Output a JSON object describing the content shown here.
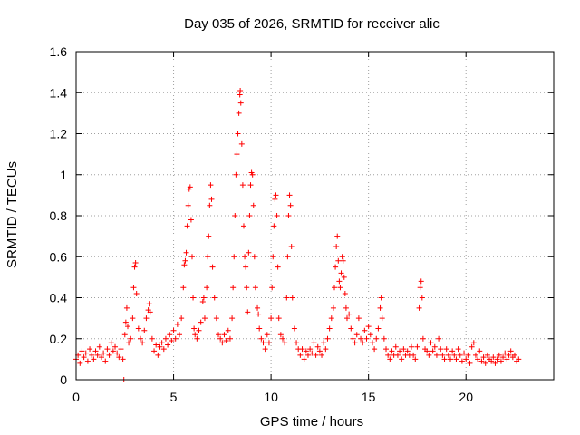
{
  "chart_data": {
    "type": "scatter",
    "title": "Day 035 of 2026, SRMTID for receiver alic",
    "xlabel": "GPS time / hours",
    "ylabel": "SRMTID / TECUs",
    "xlim": [
      0,
      24.5
    ],
    "ylim": [
      0,
      1.6
    ],
    "xticks": [
      0,
      5,
      10,
      15,
      20
    ],
    "xtick_labels": [
      "0",
      "5",
      "10",
      "15",
      "20"
    ],
    "yticks": [
      0,
      0.2,
      0.4,
      0.6,
      0.8,
      1.0,
      1.2,
      1.4,
      1.6
    ],
    "ytick_labels": [
      "0",
      "0.2",
      "0.4",
      "0.6",
      "0.8",
      "1",
      "1.2",
      "1.4",
      "1.6"
    ],
    "grid": true,
    "marker": "plus",
    "color": "#ff0000",
    "series": [
      {
        "name": "SRMTID",
        "points": [
          [
            0.0,
            0.1
          ],
          [
            0.1,
            0.12
          ],
          [
            0.2,
            0.08
          ],
          [
            0.3,
            0.14
          ],
          [
            0.4,
            0.11
          ],
          [
            0.5,
            0.13
          ],
          [
            0.6,
            0.09
          ],
          [
            0.7,
            0.15
          ],
          [
            0.8,
            0.12
          ],
          [
            0.9,
            0.1
          ],
          [
            1.0,
            0.14
          ],
          [
            1.1,
            0.12
          ],
          [
            1.2,
            0.16
          ],
          [
            1.3,
            0.11
          ],
          [
            1.4,
            0.13
          ],
          [
            1.5,
            0.09
          ],
          [
            1.6,
            0.15
          ],
          [
            1.7,
            0.12
          ],
          [
            1.8,
            0.18
          ],
          [
            1.9,
            0.14
          ],
          [
            2.0,
            0.16
          ],
          [
            2.1,
            0.13
          ],
          [
            2.2,
            0.11
          ],
          [
            2.3,
            0.15
          ],
          [
            2.4,
            0.1
          ],
          [
            2.45,
            0.0
          ],
          [
            2.5,
            0.22
          ],
          [
            2.55,
            0.28
          ],
          [
            2.6,
            0.35
          ],
          [
            2.65,
            0.26
          ],
          [
            2.7,
            0.18
          ],
          [
            2.8,
            0.2
          ],
          [
            2.9,
            0.3
          ],
          [
            2.95,
            0.45
          ],
          [
            3.0,
            0.55
          ],
          [
            3.05,
            0.57
          ],
          [
            3.1,
            0.42
          ],
          [
            3.2,
            0.25
          ],
          [
            3.3,
            0.2
          ],
          [
            3.4,
            0.18
          ],
          [
            3.5,
            0.24
          ],
          [
            3.6,
            0.3
          ],
          [
            3.7,
            0.34
          ],
          [
            3.75,
            0.37
          ],
          [
            3.8,
            0.33
          ],
          [
            3.9,
            0.2
          ],
          [
            4.0,
            0.14
          ],
          [
            4.1,
            0.17
          ],
          [
            4.2,
            0.12
          ],
          [
            4.3,
            0.16
          ],
          [
            4.4,
            0.18
          ],
          [
            4.5,
            0.15
          ],
          [
            4.6,
            0.2
          ],
          [
            4.7,
            0.17
          ],
          [
            4.8,
            0.22
          ],
          [
            4.9,
            0.19
          ],
          [
            5.0,
            0.24
          ],
          [
            5.1,
            0.2
          ],
          [
            5.2,
            0.27
          ],
          [
            5.3,
            0.22
          ],
          [
            5.4,
            0.3
          ],
          [
            5.5,
            0.45
          ],
          [
            5.55,
            0.56
          ],
          [
            5.6,
            0.58
          ],
          [
            5.65,
            0.62
          ],
          [
            5.7,
            0.75
          ],
          [
            5.75,
            0.85
          ],
          [
            5.8,
            0.93
          ],
          [
            5.85,
            0.94
          ],
          [
            5.9,
            0.78
          ],
          [
            5.95,
            0.6
          ],
          [
            6.0,
            0.4
          ],
          [
            6.05,
            0.25
          ],
          [
            6.1,
            0.22
          ],
          [
            6.2,
            0.2
          ],
          [
            6.3,
            0.24
          ],
          [
            6.4,
            0.28
          ],
          [
            6.5,
            0.38
          ],
          [
            6.55,
            0.4
          ],
          [
            6.6,
            0.3
          ],
          [
            6.7,
            0.45
          ],
          [
            6.75,
            0.6
          ],
          [
            6.8,
            0.7
          ],
          [
            6.85,
            0.85
          ],
          [
            6.9,
            0.95
          ],
          [
            6.95,
            0.88
          ],
          [
            7.0,
            0.55
          ],
          [
            7.1,
            0.4
          ],
          [
            7.2,
            0.3
          ],
          [
            7.3,
            0.22
          ],
          [
            7.4,
            0.2
          ],
          [
            7.5,
            0.18
          ],
          [
            7.6,
            0.22
          ],
          [
            7.7,
            0.19
          ],
          [
            7.8,
            0.24
          ],
          [
            7.9,
            0.2
          ],
          [
            8.0,
            0.3
          ],
          [
            8.05,
            0.45
          ],
          [
            8.1,
            0.6
          ],
          [
            8.15,
            0.8
          ],
          [
            8.2,
            1.0
          ],
          [
            8.25,
            1.1
          ],
          [
            8.3,
            1.2
          ],
          [
            8.35,
            1.3
          ],
          [
            8.4,
            1.39
          ],
          [
            8.42,
            1.41
          ],
          [
            8.45,
            1.35
          ],
          [
            8.5,
            1.15
          ],
          [
            8.55,
            0.95
          ],
          [
            8.6,
            0.75
          ],
          [
            8.65,
            0.6
          ],
          [
            8.7,
            0.55
          ],
          [
            8.75,
            0.45
          ],
          [
            8.8,
            0.33
          ],
          [
            8.85,
            0.62
          ],
          [
            8.9,
            0.8
          ],
          [
            8.95,
            0.95
          ],
          [
            9.0,
            1.01
          ],
          [
            9.05,
            1.0
          ],
          [
            9.1,
            0.85
          ],
          [
            9.15,
            0.6
          ],
          [
            9.2,
            0.45
          ],
          [
            9.3,
            0.35
          ],
          [
            9.35,
            0.32
          ],
          [
            9.4,
            0.25
          ],
          [
            9.5,
            0.2
          ],
          [
            9.6,
            0.18
          ],
          [
            9.7,
            0.15
          ],
          [
            9.8,
            0.22
          ],
          [
            9.9,
            0.18
          ],
          [
            10.0,
            0.3
          ],
          [
            10.05,
            0.45
          ],
          [
            10.1,
            0.6
          ],
          [
            10.15,
            0.75
          ],
          [
            10.2,
            0.88
          ],
          [
            10.25,
            0.9
          ],
          [
            10.3,
            0.8
          ],
          [
            10.35,
            0.55
          ],
          [
            10.4,
            0.3
          ],
          [
            10.5,
            0.22
          ],
          [
            10.6,
            0.2
          ],
          [
            10.7,
            0.18
          ],
          [
            10.8,
            0.4
          ],
          [
            10.85,
            0.6
          ],
          [
            10.9,
            0.8
          ],
          [
            10.95,
            0.9
          ],
          [
            11.0,
            0.85
          ],
          [
            11.05,
            0.65
          ],
          [
            11.1,
            0.4
          ],
          [
            11.2,
            0.25
          ],
          [
            11.3,
            0.18
          ],
          [
            11.4,
            0.15
          ],
          [
            11.5,
            0.12
          ],
          [
            11.6,
            0.15
          ],
          [
            11.7,
            0.1
          ],
          [
            11.8,
            0.14
          ],
          [
            11.9,
            0.12
          ],
          [
            12.0,
            0.15
          ],
          [
            12.1,
            0.13
          ],
          [
            12.2,
            0.18
          ],
          [
            12.3,
            0.12
          ],
          [
            12.4,
            0.16
          ],
          [
            12.5,
            0.14
          ],
          [
            12.6,
            0.12
          ],
          [
            12.7,
            0.18
          ],
          [
            12.8,
            0.15
          ],
          [
            12.9,
            0.2
          ],
          [
            13.0,
            0.25
          ],
          [
            13.1,
            0.3
          ],
          [
            13.2,
            0.35
          ],
          [
            13.25,
            0.45
          ],
          [
            13.3,
            0.55
          ],
          [
            13.35,
            0.65
          ],
          [
            13.4,
            0.7
          ],
          [
            13.45,
            0.58
          ],
          [
            13.5,
            0.48
          ],
          [
            13.55,
            0.45
          ],
          [
            13.6,
            0.52
          ],
          [
            13.65,
            0.6
          ],
          [
            13.7,
            0.58
          ],
          [
            13.75,
            0.5
          ],
          [
            13.8,
            0.42
          ],
          [
            13.85,
            0.35
          ],
          [
            13.9,
            0.3
          ],
          [
            14.0,
            0.32
          ],
          [
            14.1,
            0.25
          ],
          [
            14.2,
            0.2
          ],
          [
            14.3,
            0.18
          ],
          [
            14.4,
            0.22
          ],
          [
            14.5,
            0.3
          ],
          [
            14.6,
            0.2
          ],
          [
            14.7,
            0.18
          ],
          [
            14.8,
            0.24
          ],
          [
            14.9,
            0.2
          ],
          [
            15.0,
            0.26
          ],
          [
            15.1,
            0.22
          ],
          [
            15.2,
            0.18
          ],
          [
            15.3,
            0.15
          ],
          [
            15.4,
            0.2
          ],
          [
            15.5,
            0.25
          ],
          [
            15.6,
            0.35
          ],
          [
            15.65,
            0.4
          ],
          [
            15.7,
            0.3
          ],
          [
            15.8,
            0.2
          ],
          [
            15.9,
            0.15
          ],
          [
            16.0,
            0.12
          ],
          [
            16.1,
            0.1
          ],
          [
            16.2,
            0.14
          ],
          [
            16.3,
            0.12
          ],
          [
            16.4,
            0.16
          ],
          [
            16.5,
            0.12
          ],
          [
            16.6,
            0.14
          ],
          [
            16.7,
            0.1
          ],
          [
            16.8,
            0.15
          ],
          [
            16.9,
            0.12
          ],
          [
            17.0,
            0.14
          ],
          [
            17.1,
            0.12
          ],
          [
            17.2,
            0.16
          ],
          [
            17.3,
            0.12
          ],
          [
            17.4,
            0.1
          ],
          [
            17.5,
            0.16
          ],
          [
            17.6,
            0.35
          ],
          [
            17.65,
            0.45
          ],
          [
            17.7,
            0.48
          ],
          [
            17.75,
            0.4
          ],
          [
            17.8,
            0.2
          ],
          [
            17.9,
            0.15
          ],
          [
            18.0,
            0.14
          ],
          [
            18.1,
            0.12
          ],
          [
            18.2,
            0.18
          ],
          [
            18.3,
            0.14
          ],
          [
            18.4,
            0.16
          ],
          [
            18.5,
            0.12
          ],
          [
            18.6,
            0.2
          ],
          [
            18.7,
            0.15
          ],
          [
            18.8,
            0.12
          ],
          [
            18.9,
            0.1
          ],
          [
            19.0,
            0.15
          ],
          [
            19.1,
            0.12
          ],
          [
            19.2,
            0.1
          ],
          [
            19.3,
            0.14
          ],
          [
            19.4,
            0.12
          ],
          [
            19.5,
            0.1
          ],
          [
            19.6,
            0.15
          ],
          [
            19.7,
            0.12
          ],
          [
            19.8,
            0.09
          ],
          [
            19.9,
            0.13
          ],
          [
            20.0,
            0.1
          ],
          [
            20.1,
            0.12
          ],
          [
            20.2,
            0.08
          ],
          [
            20.3,
            0.16
          ],
          [
            20.4,
            0.18
          ],
          [
            20.5,
            0.12
          ],
          [
            20.6,
            0.1
          ],
          [
            20.7,
            0.14
          ],
          [
            20.8,
            0.09
          ],
          [
            20.9,
            0.11
          ],
          [
            21.0,
            0.08
          ],
          [
            21.1,
            0.12
          ],
          [
            21.2,
            0.1
          ],
          [
            21.3,
            0.09
          ],
          [
            21.4,
            0.11
          ],
          [
            21.5,
            0.08
          ],
          [
            21.6,
            0.1
          ],
          [
            21.7,
            0.12
          ],
          [
            21.8,
            0.09
          ],
          [
            21.9,
            0.11
          ],
          [
            22.0,
            0.13
          ],
          [
            22.1,
            0.1
          ],
          [
            22.2,
            0.12
          ],
          [
            22.3,
            0.14
          ],
          [
            22.4,
            0.11
          ],
          [
            22.5,
            0.12
          ],
          [
            22.6,
            0.09
          ],
          [
            22.7,
            0.1
          ]
        ]
      }
    ]
  }
}
